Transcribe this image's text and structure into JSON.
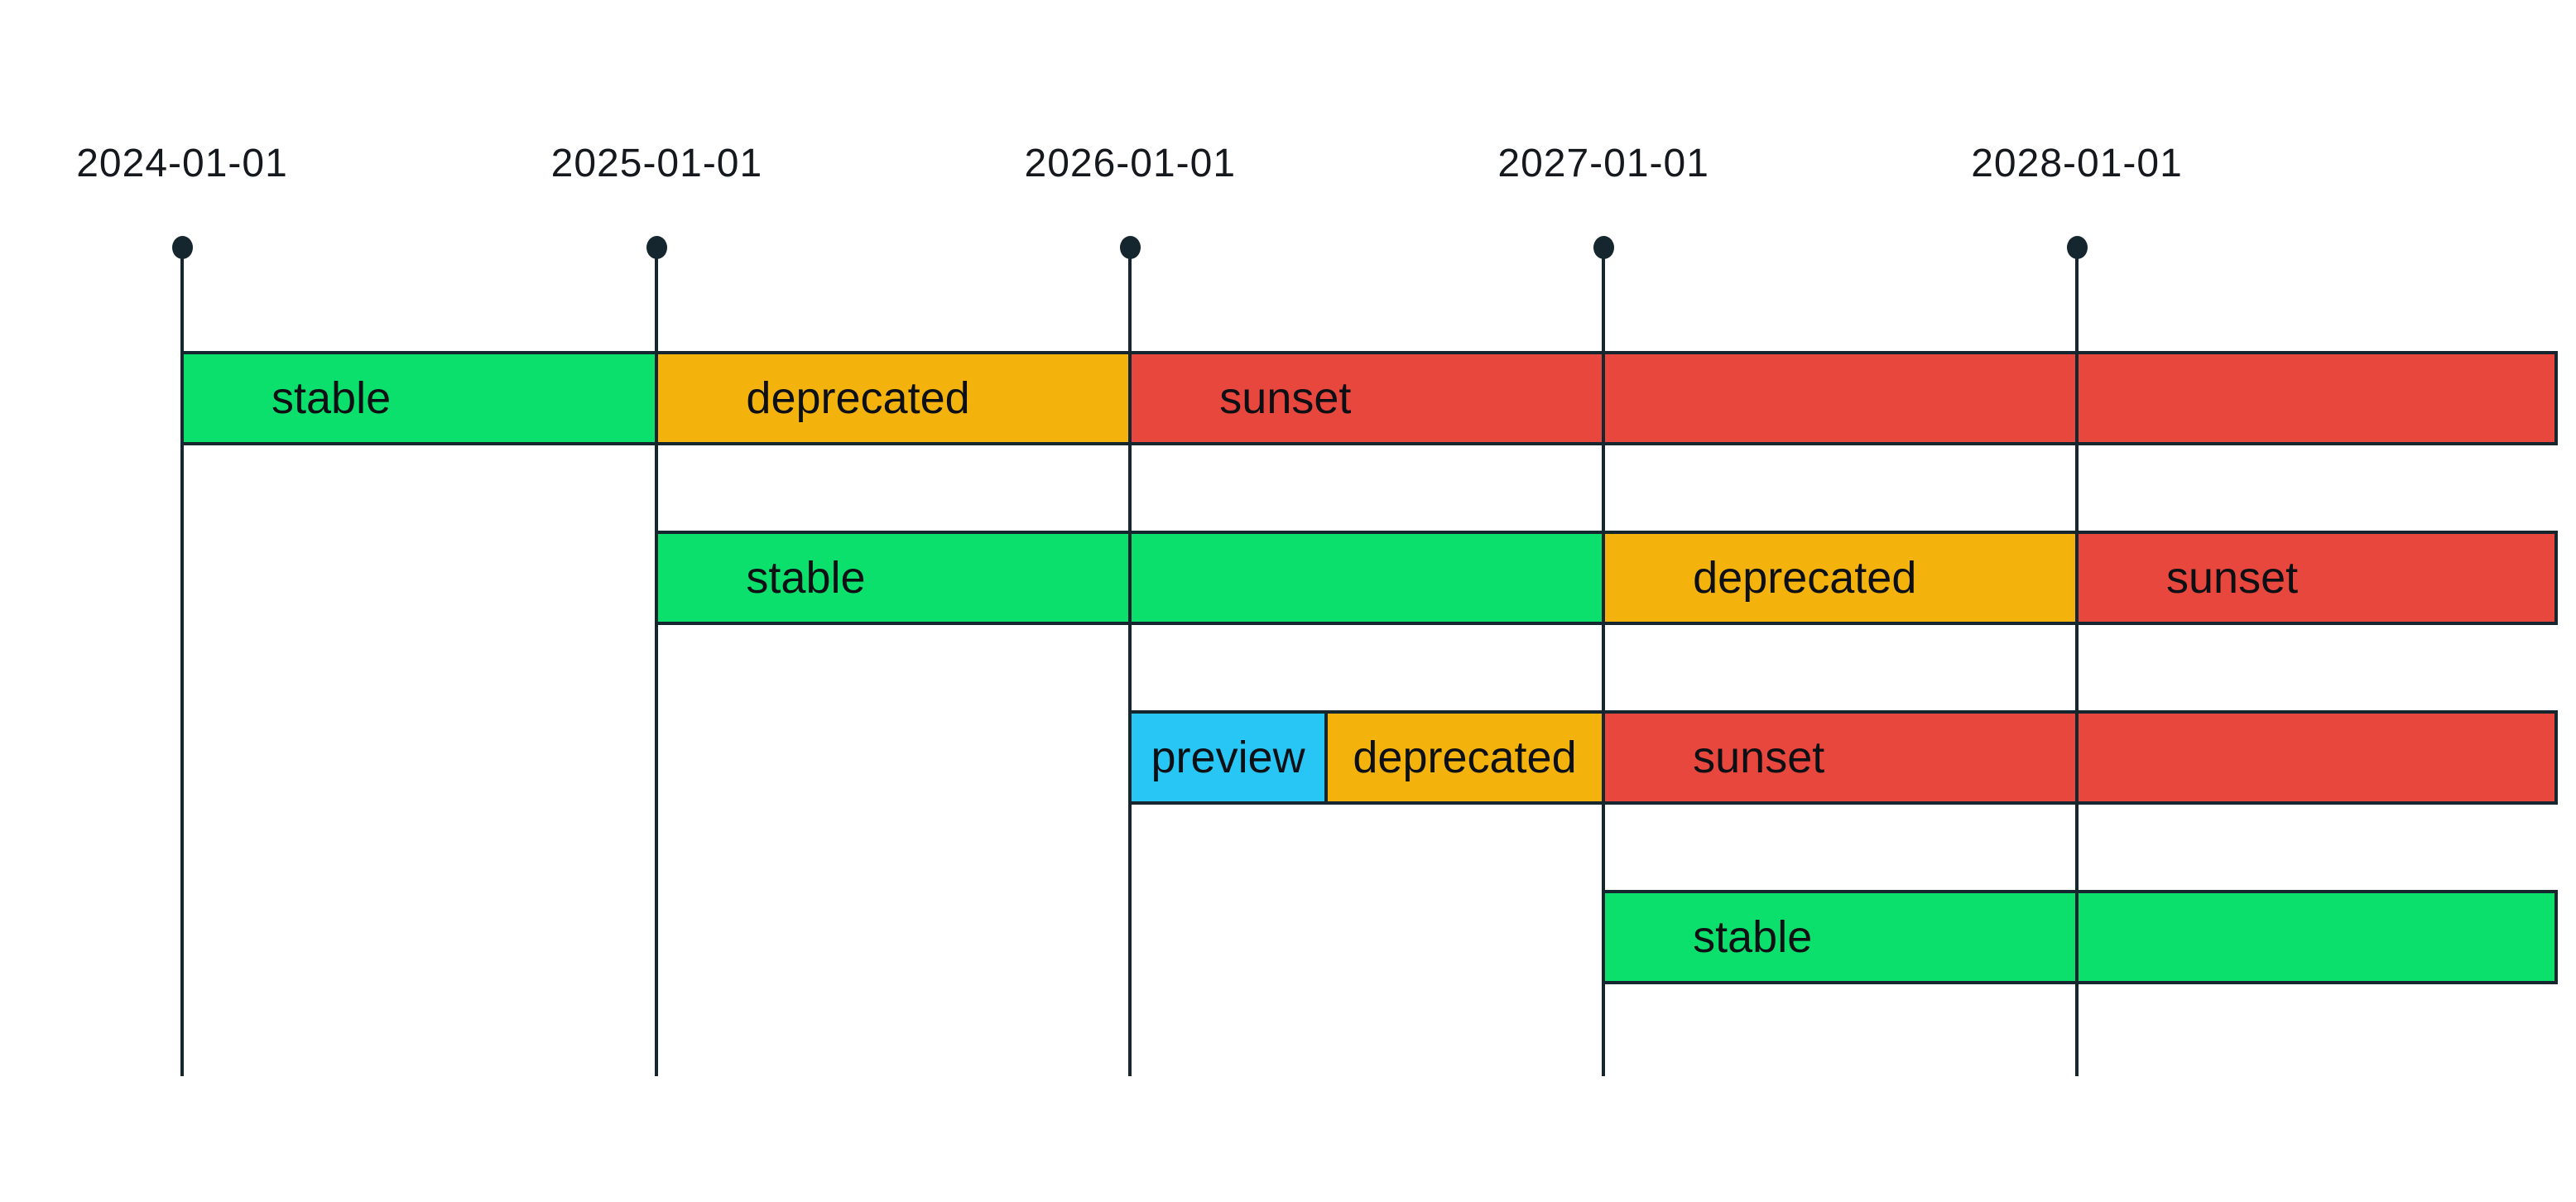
{
  "page": {
    "background": "#ffffff"
  },
  "palette": {
    "stable": "#0bdf6c",
    "deprecated": "#f4b20c",
    "sunset": "#e8473d",
    "preview": "#27c6f5",
    "axis": "#16262e",
    "bar_label_text": "#0c1014",
    "date_label_text": "#15181c"
  },
  "chart_data": {
    "type": "bar",
    "subtype": "gantt-lifecycle-timeline",
    "title": "",
    "x_axis": {
      "tick_labels": [
        "2024-01-01",
        "2025-01-01",
        "2026-01-01",
        "2027-01-01",
        "2028-01-01"
      ],
      "tick_marker": "dot-on-vertical-line",
      "range_start": "2024-01-01",
      "range_end": "2028-01-01",
      "bars_extend_past_last_tick": true,
      "gridlines": "vertical date lines drawn over bars"
    },
    "legend_position": "none",
    "rows": [
      {
        "segments": [
          {
            "label": "stable",
            "start": "2024-01-01",
            "end": "2025-01-01"
          },
          {
            "label": "deprecated",
            "start": "2025-01-01",
            "end": "2026-01-01"
          },
          {
            "label": "sunset",
            "start": "2026-01-01",
            "end": null
          }
        ]
      },
      {
        "segments": [
          {
            "label": "stable",
            "start": "2025-01-01",
            "end": "2027-01-01"
          },
          {
            "label": "deprecated",
            "start": "2027-01-01",
            "end": "2028-01-01"
          },
          {
            "label": "sunset",
            "start": "2028-01-01",
            "end": null
          }
        ]
      },
      {
        "segments": [
          {
            "label": "preview",
            "start": "2026-01-01",
            "end": "2026-06-01"
          },
          {
            "label": "deprecated",
            "start": "2026-06-01",
            "end": "2027-01-01"
          },
          {
            "label": "sunset",
            "start": "2027-01-01",
            "end": null
          }
        ]
      },
      {
        "segments": [
          {
            "label": "stable",
            "start": "2027-01-01",
            "end": null
          }
        ]
      }
    ]
  }
}
